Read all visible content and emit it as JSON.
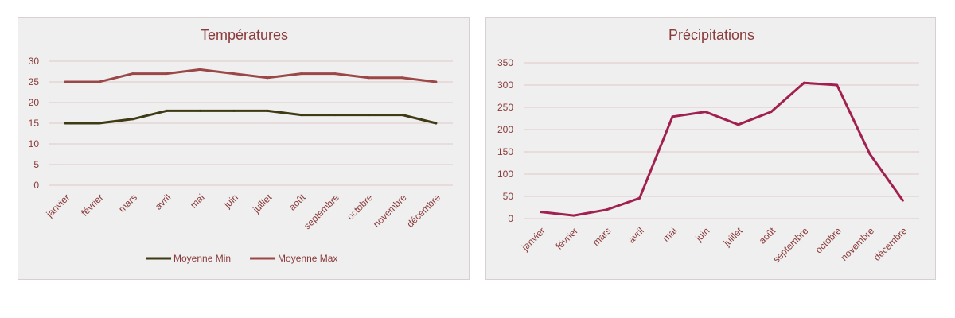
{
  "colors": {
    "text": "#8a3a3a",
    "grid": "#e2c7c7",
    "panel_bg": "#efefef",
    "min_line": "#3d3a14",
    "max_line": "#9b4747",
    "rain_line": "#a0204f"
  },
  "chart_data": [
    {
      "type": "line",
      "title": "Températures",
      "xlabel": "",
      "ylabel": "",
      "categories": [
        "janvier",
        "février",
        "mars",
        "avril",
        "mai",
        "juin",
        "juillet",
        "août",
        "septembre",
        "octobre",
        "novembre",
        "décembre"
      ],
      "ylim": [
        0,
        30
      ],
      "yticks": [
        "0",
        "5",
        "10",
        "15",
        "20",
        "25",
        "30"
      ],
      "grid": true,
      "legend_position": "bottom",
      "series": [
        {
          "name": "Moyenne Min",
          "color": "#3d3a14",
          "values": [
            15,
            15,
            16,
            18,
            18,
            18,
            18,
            17,
            17,
            17,
            17,
            15
          ]
        },
        {
          "name": "Moyenne Max",
          "color": "#9b4747",
          "values": [
            25,
            25,
            27,
            27,
            28,
            27,
            26,
            27,
            27,
            26,
            26,
            25
          ]
        }
      ]
    },
    {
      "type": "line",
      "title": "Précipitations",
      "xlabel": "",
      "ylabel": "",
      "categories": [
        "janvier",
        "février",
        "mars",
        "avril",
        "mai",
        "juin",
        "juillet",
        "août",
        "septembre",
        "octobre",
        "novembre",
        "décembre"
      ],
      "ylim": [
        0,
        350
      ],
      "yticks": [
        "0",
        "50",
        "100",
        "150",
        "200",
        "250",
        "300",
        "350"
      ],
      "grid": true,
      "legend_position": "none",
      "series": [
        {
          "color": "#a0204f",
          "values": [
            15,
            7,
            20,
            46,
            229,
            240,
            211,
            240,
            305,
            300,
            145,
            41
          ]
        }
      ]
    }
  ]
}
